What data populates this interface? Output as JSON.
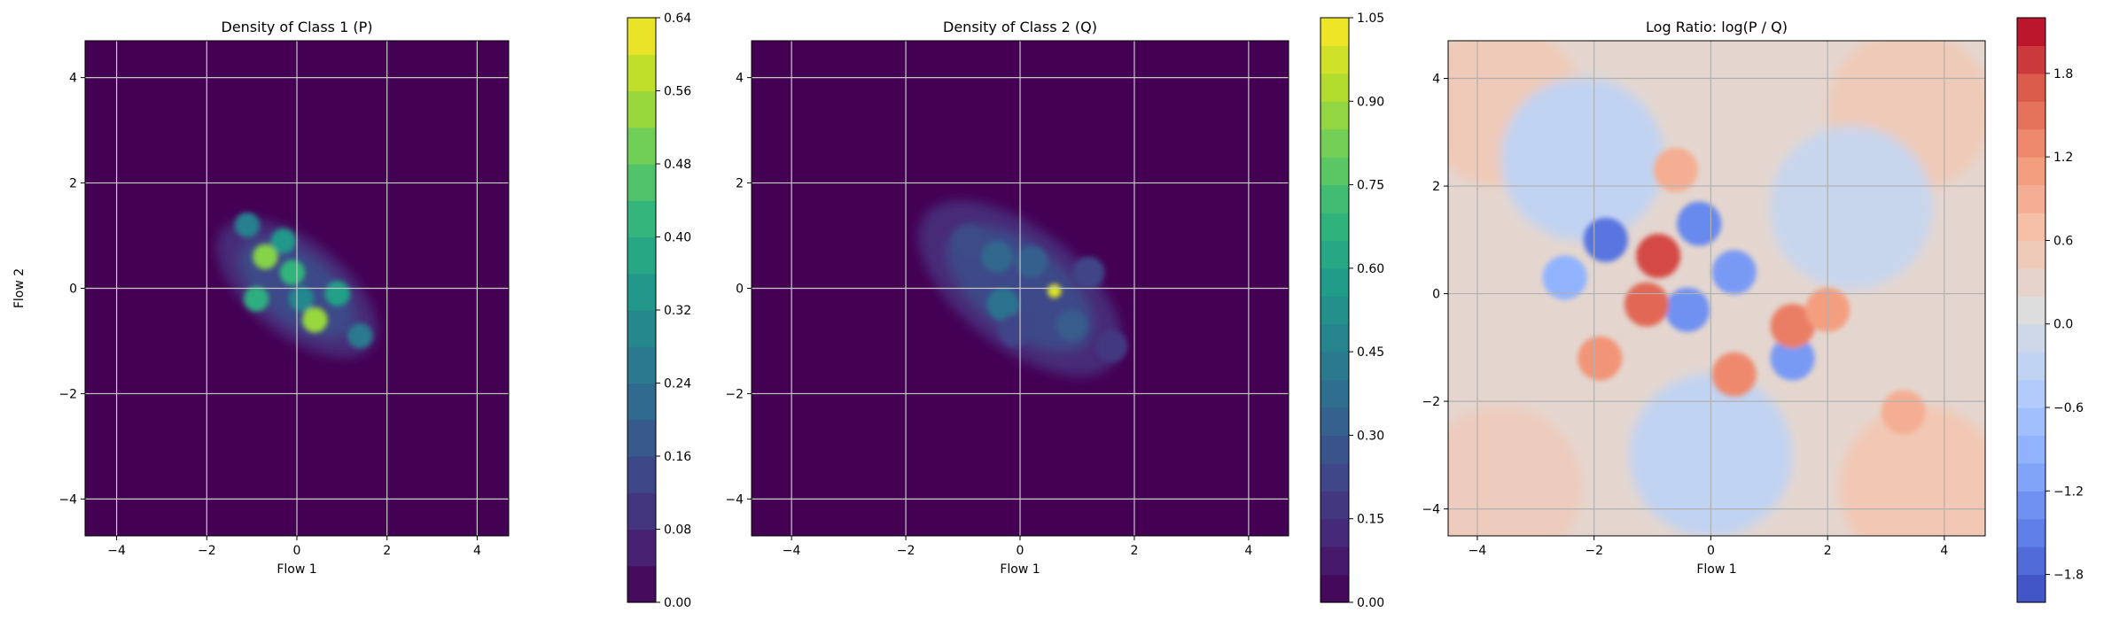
{
  "chart_data": [
    {
      "type": "contour",
      "title": "Density of Class 1 (P)",
      "xlabel": "Flow 1",
      "ylabel": "Flow 2",
      "xlim": [
        -4.7,
        4.7
      ],
      "ylim": [
        -4.7,
        4.7
      ],
      "xticks": [
        -4,
        -2,
        0,
        2,
        4
      ],
      "yticks": [
        -4,
        -2,
        0,
        2,
        4
      ],
      "grid": true,
      "colormap": "viridis",
      "colorbar": {
        "min": 0.0,
        "max": 0.64,
        "ticks": [
          "0.00",
          "0.08",
          "0.16",
          "0.24",
          "0.32",
          "0.40",
          "0.48",
          "0.56",
          "0.64"
        ],
        "levels": 16
      },
      "blobs": [
        {
          "x": -0.7,
          "y": 0.6,
          "value": 0.52
        },
        {
          "x": 0.4,
          "y": -0.6,
          "value": 0.54
        },
        {
          "x": -0.1,
          "y": 0.3,
          "value": 0.42
        },
        {
          "x": -0.9,
          "y": -0.2,
          "value": 0.4
        },
        {
          "x": 0.9,
          "y": -0.1,
          "value": 0.36
        },
        {
          "x": -0.3,
          "y": 0.9,
          "value": 0.34
        },
        {
          "x": -1.1,
          "y": 1.2,
          "value": 0.28
        },
        {
          "x": 1.4,
          "y": -0.9,
          "value": 0.26
        },
        {
          "x": 0.1,
          "y": -0.2,
          "value": 0.3
        }
      ]
    },
    {
      "type": "contour",
      "title": "Density of Class 2 (Q)",
      "xlabel": "Flow 1",
      "ylabel": "",
      "xlim": [
        -4.7,
        4.7
      ],
      "ylim": [
        -4.7,
        4.7
      ],
      "xticks": [
        -4,
        -2,
        0,
        2,
        4
      ],
      "yticks": [
        -4,
        -2,
        0,
        2,
        4
      ],
      "grid": true,
      "colormap": "viridis",
      "colorbar": {
        "min": 0.0,
        "max": 1.05,
        "ticks": [
          "0.00",
          "0.15",
          "0.30",
          "0.45",
          "0.60",
          "0.75",
          "0.90",
          "1.05"
        ],
        "levels": 21
      },
      "blobs": [
        {
          "x": 0.6,
          "y": -0.05,
          "value": 1.0
        },
        {
          "x": -0.3,
          "y": -0.3,
          "value": 0.4
        },
        {
          "x": -0.4,
          "y": 0.6,
          "value": 0.35
        },
        {
          "x": 0.2,
          "y": 0.5,
          "value": 0.32
        },
        {
          "x": 0.9,
          "y": -0.7,
          "value": 0.3
        },
        {
          "x": -0.9,
          "y": 0.9,
          "value": 0.24
        },
        {
          "x": 1.2,
          "y": 0.3,
          "value": 0.22
        },
        {
          "x": -0.1,
          "y": -0.8,
          "value": 0.22
        },
        {
          "x": 1.6,
          "y": -1.1,
          "value": 0.18
        }
      ]
    },
    {
      "type": "contour",
      "title": "Log Ratio: log(P / Q)",
      "xlabel": "Flow 1",
      "ylabel": "",
      "xlim": [
        -4.5,
        4.7
      ],
      "ylim": [
        -4.5,
        4.7
      ],
      "xticks": [
        -4,
        -2,
        0,
        2,
        4
      ],
      "yticks": [
        -4,
        -2,
        0,
        2,
        4
      ],
      "grid": true,
      "colormap": "coolwarm",
      "colorbar": {
        "min": -2.0,
        "max": 2.2,
        "ticks": [
          "−1.8",
          "−1.2",
          "−0.6",
          "0.0",
          "0.6",
          "1.2",
          "1.8"
        ],
        "levels": 21
      },
      "blobs": [
        {
          "x": -1.8,
          "y": 1.0,
          "value": -1.6
        },
        {
          "x": -0.2,
          "y": 1.3,
          "value": -1.4
        },
        {
          "x": 0.4,
          "y": 0.4,
          "value": -1.2
        },
        {
          "x": -0.4,
          "y": -0.3,
          "value": -1.3
        },
        {
          "x": 1.4,
          "y": -1.2,
          "value": -1.2
        },
        {
          "x": -2.5,
          "y": 0.3,
          "value": -0.9
        },
        {
          "x": -0.9,
          "y": 0.7,
          "value": 1.8
        },
        {
          "x": -1.1,
          "y": -0.2,
          "value": 1.6
        },
        {
          "x": -1.9,
          "y": -1.2,
          "value": 1.2
        },
        {
          "x": 0.4,
          "y": -1.5,
          "value": 1.3
        },
        {
          "x": 1.4,
          "y": -0.6,
          "value": 1.4
        },
        {
          "x": 2.0,
          "y": -0.3,
          "value": 1.1
        },
        {
          "x": -0.6,
          "y": 2.3,
          "value": 0.9
        },
        {
          "x": 3.3,
          "y": -2.2,
          "value": 0.9
        }
      ]
    }
  ]
}
